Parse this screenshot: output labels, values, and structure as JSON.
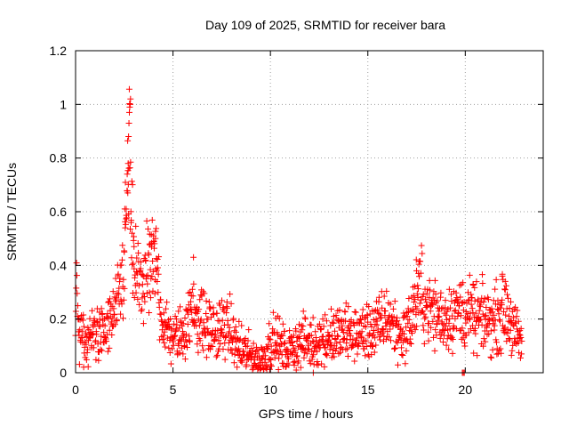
{
  "chart_data": {
    "type": "scatter",
    "title": "Day 109 of 2025, SRMTID for receiver bara",
    "xlabel": "GPS time / hours",
    "ylabel": "SRMTID / TECUs",
    "xlim": [
      0,
      24
    ],
    "ylim": [
      0,
      1.2
    ],
    "grid": true,
    "x_ticks": [
      0,
      5,
      10,
      15,
      20
    ],
    "x_tick_labels": [
      "0",
      "5",
      "10",
      "15",
      "20"
    ],
    "y_ticks": [
      0,
      0.2,
      0.4,
      0.6,
      0.8,
      1,
      1.2
    ],
    "y_tick_labels": [
      "0",
      "0.2",
      "0.4",
      "0.6",
      "0.8",
      "1",
      "1.2"
    ],
    "series": [
      {
        "name": "SRMTID",
        "color": "#ff0000",
        "marker": "plus",
        "envelope": [
          [
            0.0,
            0.27
          ],
          [
            0.05,
            0.29
          ],
          [
            0.1,
            0.26
          ],
          [
            0.2,
            0.15
          ],
          [
            0.4,
            0.12
          ],
          [
            0.6,
            0.11
          ],
          [
            0.8,
            0.13
          ],
          [
            1.0,
            0.16
          ],
          [
            1.2,
            0.15
          ],
          [
            1.4,
            0.14
          ],
          [
            1.6,
            0.16
          ],
          [
            1.8,
            0.19
          ],
          [
            2.0,
            0.22
          ],
          [
            2.2,
            0.26
          ],
          [
            2.35,
            0.32
          ],
          [
            2.5,
            0.42
          ],
          [
            2.6,
            0.58
          ],
          [
            2.7,
            0.72
          ],
          [
            2.75,
            0.95
          ],
          [
            2.8,
            0.62
          ],
          [
            2.9,
            0.45
          ],
          [
            3.1,
            0.36
          ],
          [
            3.3,
            0.33
          ],
          [
            3.5,
            0.34
          ],
          [
            3.7,
            0.36
          ],
          [
            3.9,
            0.38
          ],
          [
            4.1,
            0.4
          ],
          [
            4.25,
            0.36
          ],
          [
            4.4,
            0.22
          ],
          [
            4.6,
            0.16
          ],
          [
            4.9,
            0.14
          ],
          [
            5.2,
            0.13
          ],
          [
            5.5,
            0.15
          ],
          [
            5.8,
            0.2
          ],
          [
            6.1,
            0.24
          ],
          [
            6.4,
            0.2
          ],
          [
            6.7,
            0.17
          ],
          [
            7.0,
            0.16
          ],
          [
            7.3,
            0.15
          ],
          [
            7.6,
            0.17
          ],
          [
            7.9,
            0.16
          ],
          [
            8.2,
            0.11
          ],
          [
            8.5,
            0.08
          ],
          [
            8.8,
            0.07
          ],
          [
            9.1,
            0.06
          ],
          [
            9.4,
            0.04
          ],
          [
            9.7,
            0.06
          ],
          [
            10.0,
            0.11
          ],
          [
            10.3,
            0.12
          ],
          [
            10.6,
            0.09
          ],
          [
            10.9,
            0.08
          ],
          [
            11.2,
            0.1
          ],
          [
            11.5,
            0.11
          ],
          [
            11.8,
            0.12
          ],
          [
            12.1,
            0.11
          ],
          [
            12.4,
            0.12
          ],
          [
            12.7,
            0.13
          ],
          [
            13.0,
            0.13
          ],
          [
            13.3,
            0.14
          ],
          [
            13.6,
            0.14
          ],
          [
            13.9,
            0.15
          ],
          [
            14.2,
            0.14
          ],
          [
            14.5,
            0.15
          ],
          [
            14.8,
            0.15
          ],
          [
            15.1,
            0.16
          ],
          [
            15.4,
            0.16
          ],
          [
            15.7,
            0.18
          ],
          [
            16.0,
            0.21
          ],
          [
            16.3,
            0.18
          ],
          [
            16.6,
            0.14
          ],
          [
            16.9,
            0.15
          ],
          [
            17.2,
            0.19
          ],
          [
            17.5,
            0.28
          ],
          [
            17.7,
            0.3
          ],
          [
            17.9,
            0.27
          ],
          [
            18.2,
            0.23
          ],
          [
            18.5,
            0.22
          ],
          [
            18.8,
            0.2
          ],
          [
            19.1,
            0.21
          ],
          [
            19.4,
            0.22
          ],
          [
            19.7,
            0.23
          ],
          [
            20.0,
            0.22
          ],
          [
            20.3,
            0.21
          ],
          [
            20.6,
            0.2
          ],
          [
            20.9,
            0.2
          ],
          [
            21.2,
            0.19
          ],
          [
            21.5,
            0.2
          ],
          [
            21.8,
            0.21
          ],
          [
            22.1,
            0.24
          ],
          [
            22.3,
            0.2
          ],
          [
            22.5,
            0.15
          ],
          [
            22.7,
            0.13
          ],
          [
            22.9,
            0.12
          ]
        ],
        "extra_points": [
          [
            2.65,
            0.74
          ],
          [
            2.7,
            0.78
          ],
          [
            2.72,
            0.88
          ],
          [
            2.74,
            0.93
          ],
          [
            2.76,
            0.97
          ],
          [
            2.78,
            0.99
          ],
          [
            2.8,
            1.0
          ],
          [
            2.82,
            1.02
          ],
          [
            2.68,
            0.67
          ],
          [
            2.6,
            0.61
          ],
          [
            2.55,
            0.54
          ],
          [
            2.85,
            0.56
          ],
          [
            2.9,
            0.52
          ],
          [
            3.0,
            0.47
          ],
          [
            2.5,
            0.45
          ],
          [
            6.05,
            0.43
          ],
          [
            3.8,
            0.48
          ],
          [
            4.0,
            0.51
          ],
          [
            4.1,
            0.5
          ],
          [
            3.9,
            0.47
          ],
          [
            17.5,
            0.38
          ],
          [
            17.6,
            0.37
          ],
          [
            21.9,
            0.36
          ],
          [
            22.05,
            0.34
          ],
          [
            20.4,
            0.33
          ],
          [
            19.85,
            0.0
          ],
          [
            19.9,
            0.0
          ],
          [
            19.95,
            0.0
          ],
          [
            12.2,
            0.0
          ]
        ],
        "count": 1380
      }
    ]
  }
}
